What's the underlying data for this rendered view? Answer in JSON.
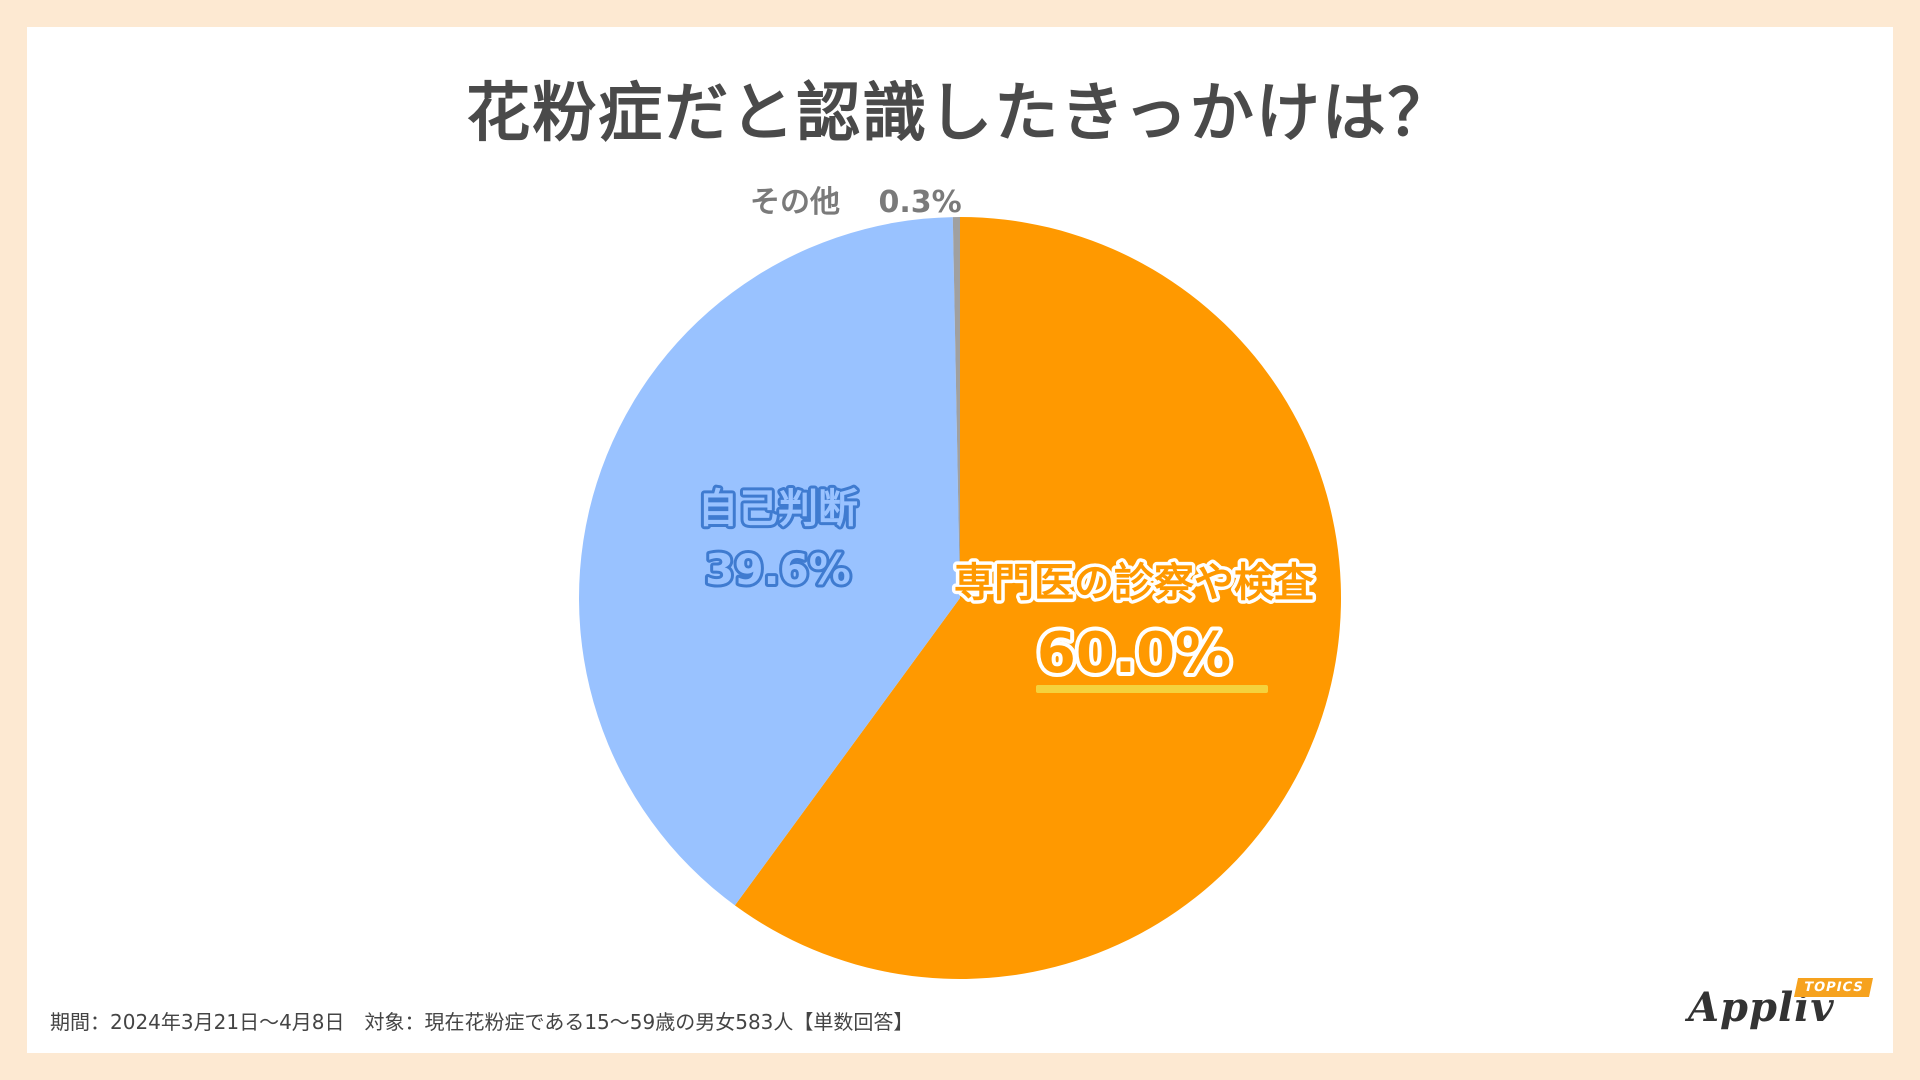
{
  "title": "花粉症だと認識したきっかけは？",
  "footer": "期間：2024年3月21日～4月8日　対象：現在花粉症である15～59歳の男女583人【単数回答】",
  "logo": {
    "word": "Appliv",
    "badge": "TOPICS"
  },
  "chart_data": {
    "type": "pie",
    "title": "花粉症だと認識したきっかけは？",
    "slices": [
      {
        "label": "専門医の診察や検査",
        "value": 60.0,
        "display": "60.0%",
        "color": "#FF9900"
      },
      {
        "label": "自己判断",
        "value": 39.6,
        "display": "39.6%",
        "color": "#99C2FF"
      },
      {
        "label": "その他",
        "value": 0.3,
        "display": "0.3%",
        "color": "#A0A0A0"
      }
    ],
    "start": "12 o'clock",
    "direction": "clockwise",
    "legend": "none",
    "highlight_color": "#F5D23C"
  }
}
